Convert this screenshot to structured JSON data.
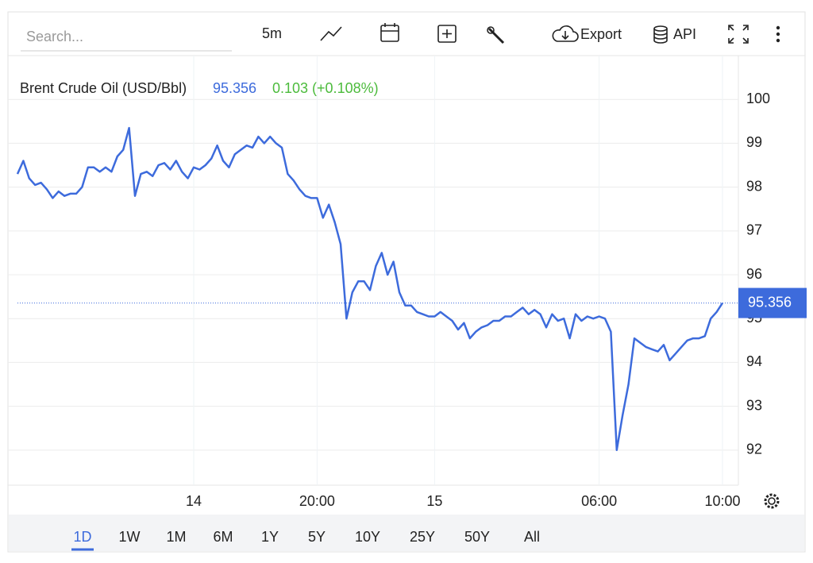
{
  "toolbar": {
    "search_placeholder": "Search...",
    "interval": "5m",
    "export": "Export",
    "api": "API"
  },
  "chart_data": {
    "type": "line",
    "series": [
      {
        "name": "Brent Crude Oil (USD/Bbl)",
        "color": "#3d6bdc",
        "values": [
          98.3,
          98.6,
          98.2,
          98.05,
          98.1,
          97.95,
          97.75,
          97.9,
          97.8,
          97.85,
          97.85,
          98.0,
          98.45,
          98.45,
          98.35,
          98.45,
          98.35,
          98.7,
          98.85,
          99.35,
          97.8,
          98.3,
          98.35,
          98.25,
          98.5,
          98.55,
          98.4,
          98.6,
          98.35,
          98.2,
          98.45,
          98.4,
          98.5,
          98.65,
          98.95,
          98.6,
          98.45,
          98.75,
          98.85,
          98.95,
          98.9,
          99.15,
          99.0,
          99.15,
          99.0,
          98.9,
          98.3,
          98.15,
          97.95,
          97.8,
          97.75,
          97.75,
          97.3,
          97.6,
          97.2,
          96.7,
          95.0,
          95.6,
          95.85,
          95.85,
          95.65,
          96.2,
          96.5,
          96.0,
          96.3,
          95.6,
          95.3,
          95.3,
          95.15,
          95.1,
          95.05,
          95.05,
          95.15,
          95.05,
          94.95,
          94.75,
          94.9,
          94.55,
          94.7,
          94.8,
          94.85,
          94.95,
          94.95,
          95.05,
          95.05,
          95.15,
          95.25,
          95.1,
          95.2,
          95.1,
          94.8,
          95.1,
          94.95,
          95.0,
          94.55,
          95.1,
          94.95,
          95.05,
          95.0,
          95.05,
          95.0,
          94.7,
          92.0,
          92.8,
          93.5,
          94.55,
          94.45,
          94.35,
          94.3,
          94.25,
          94.4,
          94.05,
          94.2,
          94.35,
          94.5,
          94.55,
          94.55,
          94.6,
          95.0,
          95.15,
          95.356
        ]
      }
    ],
    "categories": [
      null,
      null,
      null,
      null,
      null,
      null,
      null,
      null,
      null,
      null,
      null,
      null,
      null,
      null,
      null,
      null,
      null,
      null,
      null,
      null,
      null,
      null,
      null,
      null,
      null,
      null,
      null,
      null,
      null,
      null,
      "14",
      null,
      null,
      null,
      null,
      null,
      null,
      null,
      null,
      null,
      null,
      null,
      null,
      null,
      null,
      null,
      null,
      null,
      null,
      null,
      null,
      "20:00",
      null,
      null,
      null,
      null,
      null,
      null,
      null,
      null,
      null,
      null,
      null,
      null,
      null,
      null,
      null,
      null,
      null,
      null,
      null,
      "15",
      null,
      null,
      null,
      null,
      null,
      null,
      null,
      null,
      null,
      null,
      null,
      null,
      null,
      null,
      null,
      null,
      null,
      null,
      null,
      null,
      null,
      null,
      null,
      null,
      null,
      null,
      null,
      "06:00",
      null,
      null,
      null,
      null,
      null,
      null,
      null,
      null,
      null,
      null,
      null,
      null,
      null,
      null,
      null,
      null,
      null,
      null,
      null,
      null,
      "10:00"
    ],
    "current_price": 95.356,
    "change": "0.103 (+0.108%)",
    "ylim": [
      91.2,
      101
    ],
    "yticks": [
      92,
      93,
      94,
      95,
      96,
      97,
      98,
      99,
      100
    ],
    "grid": true
  },
  "ranges": {
    "items": [
      "1D",
      "1W",
      "1M",
      "6M",
      "1Y",
      "5Y",
      "10Y",
      "25Y",
      "50Y",
      "All"
    ],
    "active": "1D"
  }
}
